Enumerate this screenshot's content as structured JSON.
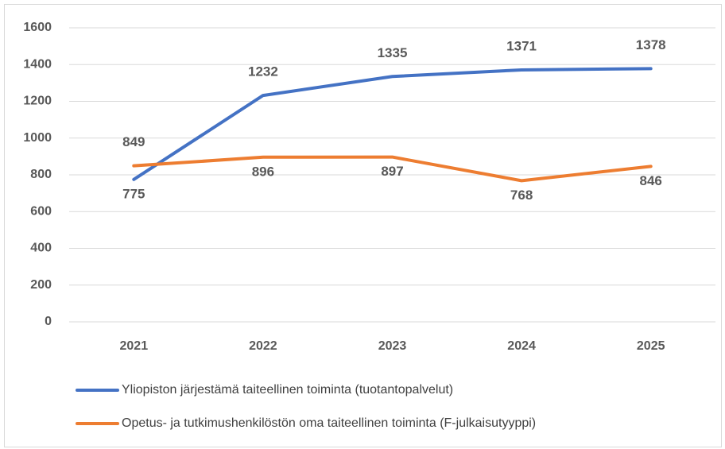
{
  "chart_data": {
    "type": "line",
    "categories": [
      "2021",
      "2022",
      "2023",
      "2024",
      "2025"
    ],
    "series": [
      {
        "name": "Yliopiston järjestämä taiteellinen toiminta (tuotantopalvelut)",
        "color": "#4472c4",
        "values": [
          775,
          1232,
          1335,
          1371,
          1378
        ]
      },
      {
        "name": "Opetus- ja tutkimushenkilöstön oma taiteellinen toiminta (F-julkaisutyyppi)",
        "color": "#ed7d31",
        "values": [
          849,
          896,
          897,
          768,
          846
        ]
      }
    ],
    "ylim": [
      0,
      1600
    ],
    "yticks": [
      0,
      200,
      400,
      600,
      800,
      1000,
      1200,
      1400,
      1600
    ],
    "grid": true,
    "data_labels": true,
    "legend": "bottom"
  }
}
